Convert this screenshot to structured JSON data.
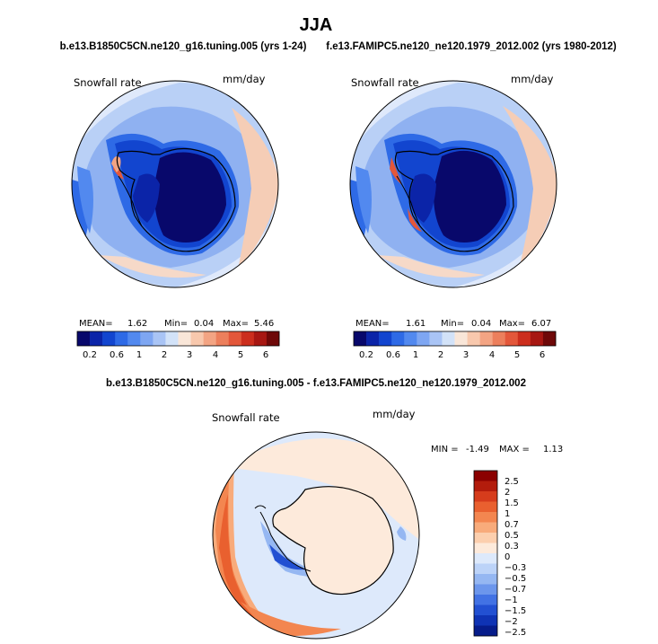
{
  "chart_data": {
    "type": "heatmap",
    "title": "JJA",
    "variable": "Snowfall rate",
    "units": "mm/day",
    "panels": [
      {
        "id": "test",
        "case": "b.e13.B1850C5CN.ne120_g16.tuning.005 (yrs 1-24)",
        "variable": "Snowfall rate",
        "units": "mm/day",
        "stats": {
          "mean_label": "MEAN=",
          "mean": "1.62",
          "min_label": "Min=",
          "min": "0.04",
          "max_label": "Max=",
          "max": "5.46"
        },
        "colorbar_ticks": [
          "0.2",
          "0.6",
          "1",
          "2",
          "3",
          "4",
          "5",
          "6"
        ],
        "levels": [
          0.2,
          0.4,
          0.6,
          0.8,
          1,
          1.5,
          2,
          2.5,
          3,
          3.5,
          4,
          4.5,
          5,
          5.5,
          6
        ]
      },
      {
        "id": "control",
        "case": "f.e13.FAMIPC5.ne120_ne120.1979_2012.002 (yrs 1980-2012)",
        "variable": "Snowfall rate",
        "units": "mm/day",
        "stats": {
          "mean_label": "MEAN=",
          "mean": "1.61",
          "min_label": "Min=",
          "min": "0.04",
          "max_label": "Max=",
          "max": "6.07"
        },
        "colorbar_ticks": [
          "0.2",
          "0.6",
          "1",
          "2",
          "3",
          "4",
          "5",
          "6"
        ],
        "levels": [
          0.2,
          0.4,
          0.6,
          0.8,
          1,
          1.5,
          2,
          2.5,
          3,
          3.5,
          4,
          4.5,
          5,
          5.5,
          6
        ]
      },
      {
        "id": "difference",
        "case": "b.e13.B1850C5CN.ne120_g16.tuning.005 - f.e13.FAMIPC5.ne120_ne120.1979_2012.002",
        "variable": "Snowfall rate",
        "units": "mm/day",
        "stats": {
          "min_label": "MIN =",
          "min": "-1.49",
          "max_label": "MAX =",
          "max": "1.13"
        },
        "colorbar_ticks": [
          "2.5",
          "2",
          "1.5",
          "1",
          "0.7",
          "0.5",
          "0.3",
          "0",
          "−0.3",
          "−0.5",
          "−0.7",
          "−1",
          "−1.5",
          "−2",
          "−2.5"
        ]
      }
    ]
  },
  "colors": {
    "sequential": [
      "#08086b",
      "#0b24a8",
      "#1245cf",
      "#2e6ae6",
      "#5289ef",
      "#7ea6f2",
      "#a9c4f5",
      "#d2e2f8",
      "#f9e6d8",
      "#f8c8ad",
      "#f3a483",
      "#ec7f5c",
      "#e3573a",
      "#cc2e1d",
      "#a71712",
      "#6e0808"
    ],
    "diverging": [
      "#8b0000",
      "#b31c0c",
      "#d63c1c",
      "#e9602f",
      "#f38650",
      "#f8ab7b",
      "#fccfae",
      "#fdeadb",
      "#dde9fb",
      "#bcd3f8",
      "#95b7f2",
      "#6c96ec",
      "#4272e4",
      "#2250d2",
      "#0f33b4",
      "#061c8a"
    ],
    "land": "#000000"
  }
}
